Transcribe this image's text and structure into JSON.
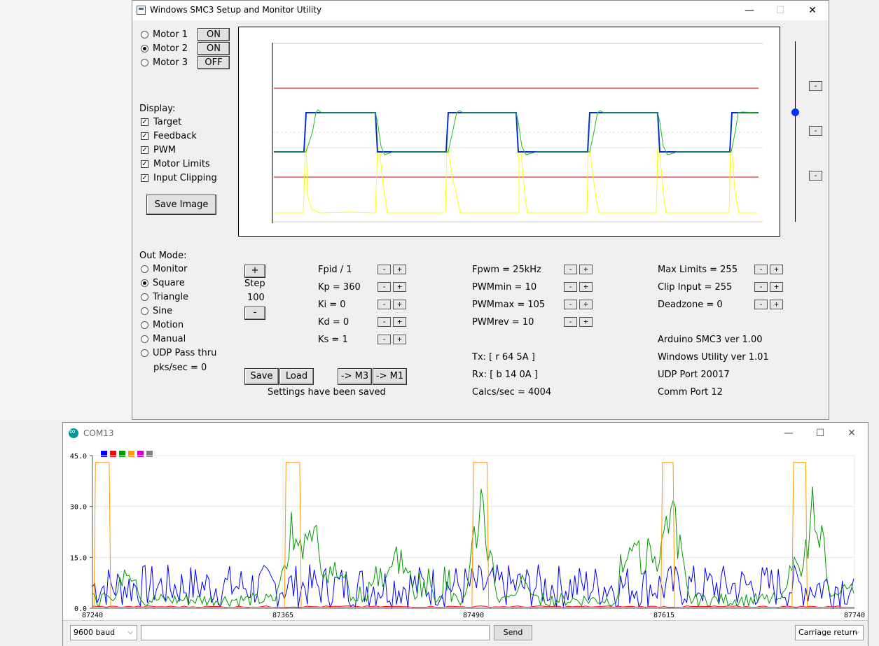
{
  "smc_window": {
    "title": "Windows SMC3 Setup and Monitor Utility",
    "controls": {
      "minimize": "—",
      "maximize": "☐",
      "close": "✕"
    },
    "motors": [
      {
        "label": "Motor 1",
        "state": "ON",
        "selected": false
      },
      {
        "label": "Motor 2",
        "state": "ON",
        "selected": true
      },
      {
        "label": "Motor 3",
        "state": "OFF",
        "selected": false
      }
    ],
    "display": {
      "heading": "Display:",
      "items": [
        {
          "label": "Target",
          "checked": true
        },
        {
          "label": "Feedback",
          "checked": true
        },
        {
          "label": "PWM",
          "checked": true
        },
        {
          "label": "Motor Limits",
          "checked": true
        },
        {
          "label": "Input Clipping",
          "checked": true
        }
      ],
      "save_image": "Save Image"
    },
    "scope": {
      "series_colors": {
        "target": "#0033cc",
        "feedback": "#22bb22",
        "pwm": "#ffff00",
        "limits": "#cc0000"
      }
    },
    "side_buttons": [
      "-",
      "-",
      "-"
    ],
    "out_mode": {
      "heading": "Out Mode:",
      "items": [
        {
          "label": "Monitor",
          "selected": false
        },
        {
          "label": "Square",
          "selected": true
        },
        {
          "label": "Triangle",
          "selected": false
        },
        {
          "label": "Sine",
          "selected": false
        },
        {
          "label": "Motion",
          "selected": false
        },
        {
          "label": "Manual",
          "selected": false
        },
        {
          "label": "UDP Pass thru",
          "selected": false
        }
      ],
      "pks": "pks/sec = 0"
    },
    "step": {
      "plus": "+",
      "label": "Step",
      "value": "100",
      "minus": "-"
    },
    "pid_params": [
      "Fpid / 1",
      "Kp = 360",
      "Ki = 0",
      "Kd = 0",
      "Ks = 1"
    ],
    "pwm_params": [
      "Fpwm = 25kHz",
      "PWMmin = 10",
      "PWMmax = 105",
      "PWMrev = 10"
    ],
    "limit_params": [
      "Max Limits = 255",
      "Clip Input = 255",
      "Deadzone = 0"
    ],
    "pm": {
      "minus": "-",
      "plus": "+"
    },
    "comm": {
      "tx": "Tx: [ r 64 5A ]",
      "rx": "Rx: [ b 14 0A ]",
      "calcs": "Calcs/sec = 4004"
    },
    "info": [
      "Arduino SMC3 ver 1.00",
      "Windows Utility ver 1.01",
      "UDP Port 20017",
      "Comm Port 12"
    ],
    "buttons": {
      "save": "Save",
      "load": "Load",
      "to_m3": "-> M3",
      "to_m1": "-> M1"
    },
    "status": "Settings have been saved"
  },
  "com_window": {
    "title": "COM13",
    "controls": {
      "minimize": "—",
      "maximize": "☐",
      "close": "✕"
    },
    "legend_colors": [
      "#0000ff",
      "#ff0000",
      "#009900",
      "#ff9900",
      "#cc00cc",
      "#808080"
    ],
    "baud": "9600 baud",
    "send": "Send",
    "line_ending": "Carriage return",
    "input_value": ""
  },
  "chart_data": {
    "type": "line",
    "title": "",
    "xlabel": "",
    "ylabel": "",
    "x_ticks": [
      "87240",
      "87365",
      "87490",
      "87615",
      "87740"
    ],
    "y_ticks": [
      "0.0",
      "15.0",
      "30.0",
      "45.0"
    ],
    "xlim": [
      87240,
      87740
    ],
    "ylim": [
      0,
      45
    ],
    "grid": true,
    "series": [
      {
        "color": "#ff9900",
        "pulses": [
          [
            87241,
            87252
          ],
          [
            87366,
            87377
          ],
          [
            87489,
            87500
          ],
          [
            87613,
            87622
          ],
          [
            87699,
            87709
          ]
        ],
        "high": 43,
        "low": 0.3
      },
      {
        "color": "#009900",
        "peaks": [
          [
            87263,
            16
          ],
          [
            87371,
            30
          ],
          [
            87382,
            43
          ],
          [
            87398,
            15
          ],
          [
            87440,
            22
          ],
          [
            87495,
            43
          ],
          [
            87523,
            12
          ],
          [
            87596,
            30
          ],
          [
            87620,
            43
          ],
          [
            87700,
            18
          ],
          [
            87714,
            43
          ],
          [
            87736,
            10
          ]
        ],
        "baseline": 2
      },
      {
        "color": "#0000ff",
        "range": [
          0,
          13
        ]
      },
      {
        "color": "#ff0000",
        "values": "near 0"
      }
    ]
  }
}
